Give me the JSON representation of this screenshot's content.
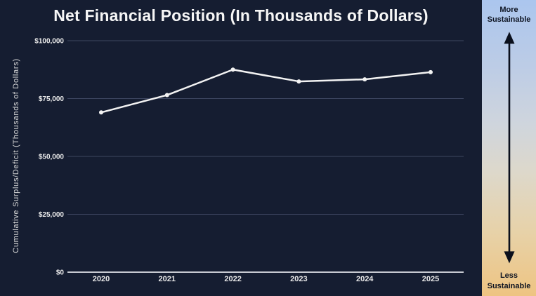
{
  "chart_data": {
    "type": "line",
    "title": "Net Financial Position (In Thousands of Dollars)",
    "categories": [
      "2020",
      "2021",
      "2022",
      "2023",
      "2024",
      "2025"
    ],
    "values": [
      69000,
      76500,
      87500,
      82400,
      83300,
      86400
    ],
    "series_name": "Net Financial Position",
    "xlabel": "",
    "ylabel": "Cumulative Surplus/Deficit (Thousands of Dollars)",
    "ylim": [
      0,
      100000
    ],
    "y_ticks": [
      {
        "value": 100000,
        "label": "$100,000"
      },
      {
        "value": 75000,
        "label": "$75,000"
      },
      {
        "value": 50000,
        "label": "$50,000"
      },
      {
        "value": 25000,
        "label": "$25,000"
      },
      {
        "value": 0,
        "label": "$0"
      }
    ],
    "grid": true,
    "legend_position": "none",
    "line_color": "#f3f3f3",
    "point_color": "#f3f3f3",
    "background_color": "#151d31"
  },
  "sidebar": {
    "top_label": "More Sustainable",
    "bottom_label": "Less Sustainable",
    "arrow_icon": "double-headed-vertical-arrow",
    "gradient_top_color": "#abc6ee",
    "gradient_bottom_color": "#eec482",
    "arrow_color": "#0a0f1c"
  }
}
